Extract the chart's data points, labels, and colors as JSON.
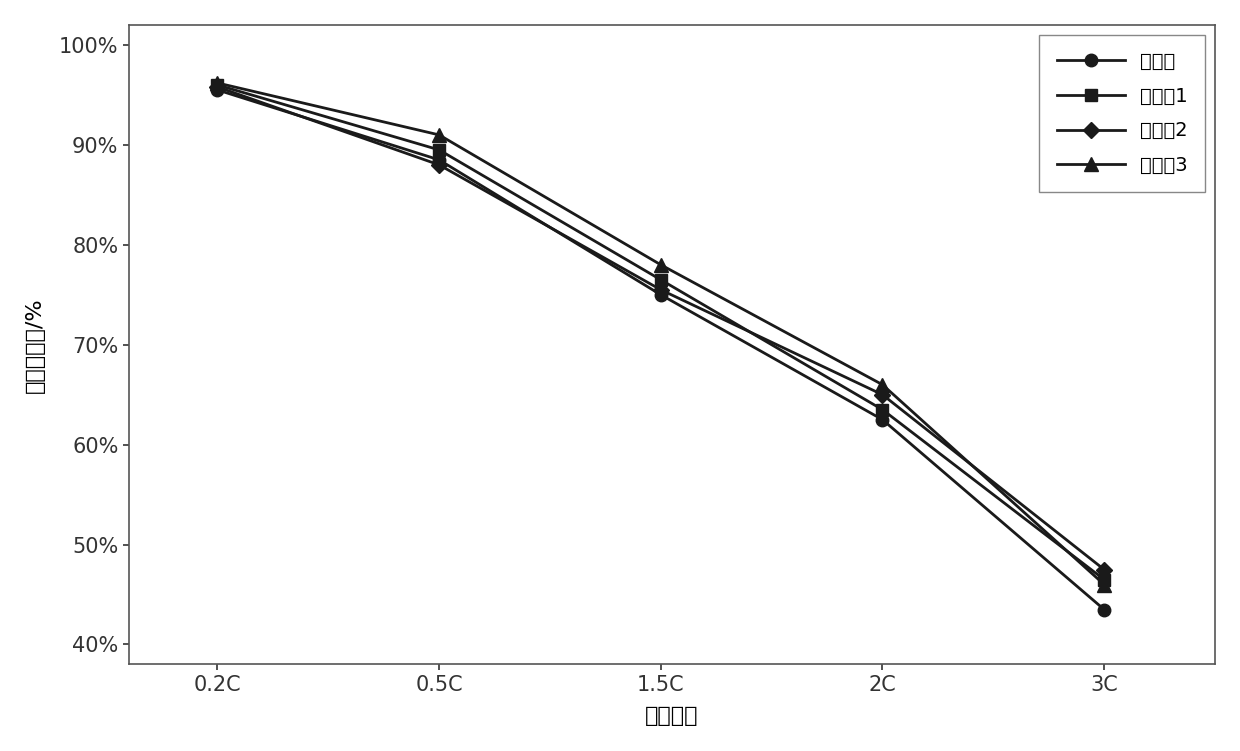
{
  "x_labels": [
    "0.2C",
    "0.5C",
    "1.5C",
    "2C",
    "3C"
  ],
  "x_positions": [
    0,
    1,
    2,
    3,
    4
  ],
  "series": [
    {
      "name": "对比例",
      "values": [
        95.5,
        88.5,
        75.0,
        62.5,
        43.5
      ],
      "marker": "o",
      "color": "#1a1a1a",
      "linewidth": 2.0,
      "markersize": 9,
      "linestyle": "-"
    },
    {
      "name": "实施例1",
      "values": [
        96.0,
        89.5,
        76.5,
        63.5,
        46.5
      ],
      "marker": "s",
      "color": "#1a1a1a",
      "linewidth": 2.0,
      "markersize": 9,
      "linestyle": "-"
    },
    {
      "name": "实施例2",
      "values": [
        95.8,
        88.0,
        75.5,
        65.0,
        47.5
      ],
      "marker": "D",
      "color": "#1a1a1a",
      "linewidth": 2.0,
      "markersize": 8,
      "linestyle": "-"
    },
    {
      "name": "实施例3",
      "values": [
        96.2,
        91.0,
        78.0,
        66.0,
        46.0
      ],
      "marker": "^",
      "color": "#1a1a1a",
      "linewidth": 2.0,
      "markersize": 10,
      "linestyle": "-"
    }
  ],
  "ylabel": "恒流充入比/%",
  "xlabel": "充电倍率",
  "yticks": [
    40,
    50,
    60,
    70,
    80,
    90,
    100
  ],
  "ytick_labels": [
    "40%",
    "50%",
    "60%",
    "70%",
    "80%",
    "90%",
    "100%"
  ],
  "ylim": [
    38,
    102
  ],
  "xlim": [
    -0.4,
    4.5
  ],
  "legend_loc": "upper right",
  "background_color": "#ffffff",
  "axes_color": "#000000",
  "font_size": 15,
  "label_font_size": 16,
  "legend_font_size": 14
}
